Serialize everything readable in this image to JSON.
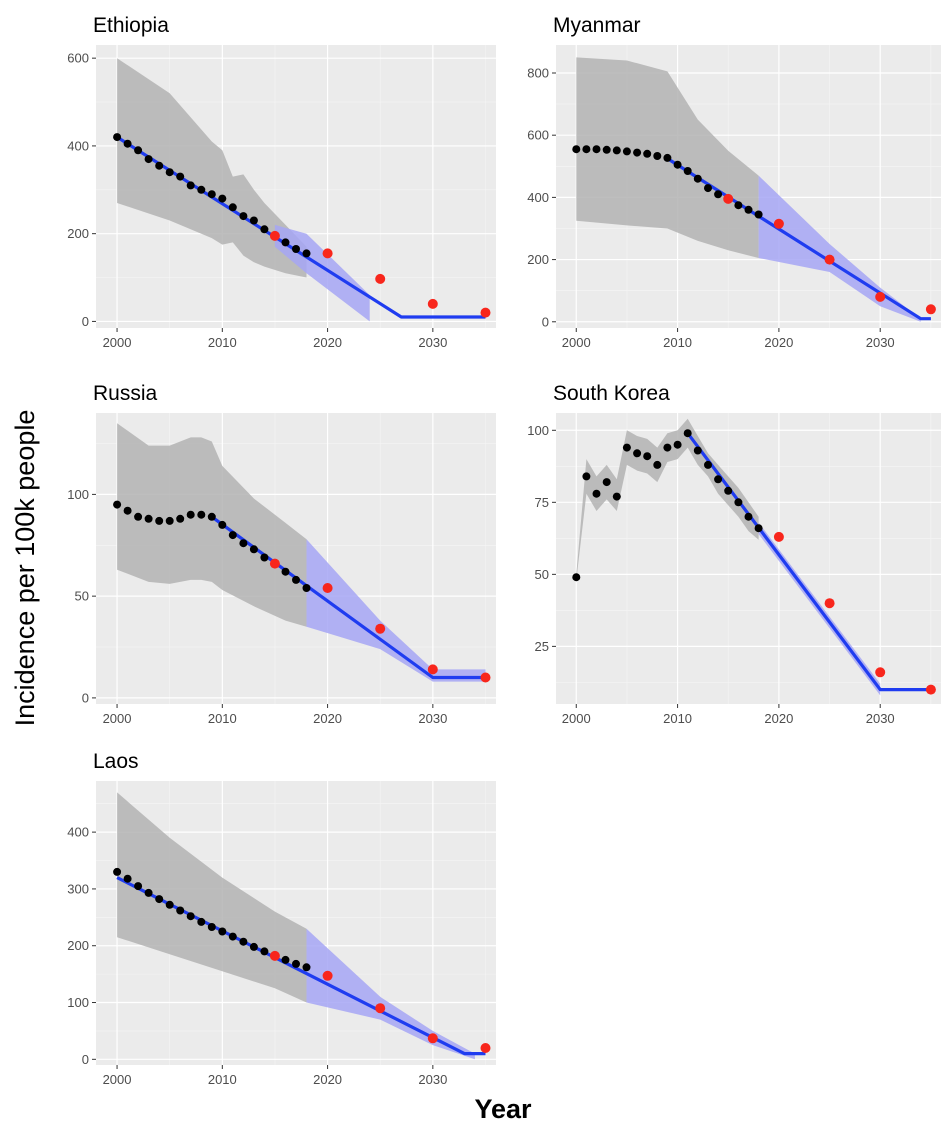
{
  "figure": {
    "xlabel": "Year",
    "ylabel": "Incidence per 100k people"
  },
  "colors": {
    "panel_background": "#ebebeb",
    "observed_points": "#000000",
    "target_points": "#f8261c",
    "trend_line": "#1f3cf0",
    "projection_band": "#a6a6f5",
    "uncertainty_band": "#b3b3b3"
  },
  "chart_data": [
    {
      "type": "scatter",
      "title": "Ethiopia",
      "xlim": [
        1998,
        2036
      ],
      "ylim": [
        -15,
        630
      ],
      "xticks": [
        2000,
        2010,
        2020,
        2030
      ],
      "yticks": [
        0,
        200,
        400,
        600
      ],
      "observed": {
        "x": [
          2000,
          2001,
          2002,
          2003,
          2004,
          2005,
          2006,
          2007,
          2008,
          2009,
          2010,
          2011,
          2012,
          2013,
          2014,
          2015,
          2016,
          2017,
          2018
        ],
        "y": [
          420,
          405,
          390,
          370,
          355,
          340,
          330,
          310,
          300,
          290,
          280,
          260,
          240,
          230,
          210,
          195,
          180,
          165,
          155
        ]
      },
      "targets": {
        "x": [
          2015,
          2020,
          2025,
          2030,
          2035
        ],
        "y": [
          195,
          155,
          97,
          40,
          20
        ]
      },
      "trend": {
        "x": [
          2000,
          2027,
          2035
        ],
        "y": [
          420,
          10,
          10
        ]
      },
      "band": {
        "x": [
          2000,
          2005,
          2009,
          2010,
          2011,
          2012,
          2013,
          2014,
          2016,
          2018
        ],
        "upper": [
          600,
          520,
          410,
          390,
          330,
          335,
          300,
          270,
          220,
          170
        ],
        "lower": [
          270,
          230,
          190,
          175,
          180,
          150,
          135,
          125,
          110,
          100
        ]
      },
      "projection": {
        "x": [
          2015,
          2018,
          2024
        ],
        "upper": [
          220,
          200,
          60
        ],
        "lower": [
          170,
          110,
          0
        ]
      }
    },
    {
      "type": "scatter",
      "title": "Myanmar",
      "xlim": [
        1998,
        2036
      ],
      "ylim": [
        -20,
        890
      ],
      "xticks": [
        2000,
        2010,
        2020,
        2030
      ],
      "yticks": [
        0,
        200,
        400,
        600,
        800
      ],
      "observed": {
        "x": [
          2000,
          2001,
          2002,
          2003,
          2004,
          2005,
          2006,
          2007,
          2008,
          2009,
          2010,
          2011,
          2012,
          2013,
          2014,
          2015,
          2016,
          2017,
          2018
        ],
        "y": [
          555,
          555,
          555,
          553,
          551,
          548,
          544,
          540,
          533,
          527,
          505,
          485,
          460,
          430,
          410,
          395,
          375,
          360,
          345
        ]
      },
      "targets": {
        "x": [
          2015,
          2020,
          2025,
          2030,
          2035
        ],
        "y": [
          395,
          315,
          200,
          80,
          40
        ]
      },
      "trend": {
        "x": [
          2009,
          2034,
          2035
        ],
        "y": [
          525,
          10,
          10
        ]
      },
      "band": {
        "x": [
          2000,
          2005,
          2009,
          2012,
          2015,
          2018
        ],
        "upper": [
          850,
          840,
          805,
          650,
          550,
          470
        ],
        "lower": [
          325,
          310,
          300,
          260,
          230,
          205
        ]
      },
      "projection": {
        "x": [
          2018,
          2025,
          2030,
          2034
        ],
        "upper": [
          470,
          250,
          110,
          10
        ],
        "lower": [
          205,
          160,
          50,
          0
        ]
      }
    },
    {
      "type": "scatter",
      "title": "Russia",
      "xlim": [
        1998,
        2036
      ],
      "ylim": [
        -3,
        140
      ],
      "xticks": [
        2000,
        2010,
        2020,
        2030
      ],
      "yticks": [
        0,
        50,
        100
      ],
      "observed": {
        "x": [
          2000,
          2001,
          2002,
          2003,
          2004,
          2005,
          2006,
          2007,
          2008,
          2009,
          2010,
          2011,
          2012,
          2013,
          2014,
          2015,
          2016,
          2017,
          2018
        ],
        "y": [
          95,
          92,
          89,
          88,
          87,
          87,
          88,
          90,
          90,
          89,
          85,
          80,
          76,
          73,
          69,
          66,
          62,
          58,
          54
        ]
      },
      "targets": {
        "x": [
          2015,
          2020,
          2025,
          2030,
          2035
        ],
        "y": [
          66,
          54,
          34,
          14,
          10
        ]
      },
      "trend": {
        "x": [
          2009,
          2030,
          2035
        ],
        "y": [
          89,
          10,
          10
        ]
      },
      "band": {
        "x": [
          2000,
          2003,
          2005,
          2007,
          2008,
          2009,
          2010,
          2013,
          2016,
          2018
        ],
        "upper": [
          135,
          124,
          124,
          128,
          128,
          126,
          114,
          98,
          86,
          78
        ],
        "lower": [
          63,
          57,
          56,
          58,
          58,
          57,
          53,
          45,
          38,
          35
        ]
      },
      "projection": {
        "x": [
          2018,
          2025,
          2030,
          2035
        ],
        "upper": [
          78,
          38,
          14,
          14
        ],
        "lower": [
          35,
          24,
          8,
          8
        ]
      }
    },
    {
      "type": "scatter",
      "title": "South Korea",
      "xlim": [
        1998,
        2036
      ],
      "ylim": [
        5,
        106
      ],
      "xticks": [
        2000,
        2010,
        2020,
        2030
      ],
      "yticks": [
        25,
        50,
        75,
        100
      ],
      "observed": {
        "x": [
          2000,
          2001,
          2002,
          2003,
          2004,
          2005,
          2006,
          2007,
          2008,
          2009,
          2010,
          2011,
          2012,
          2013,
          2014,
          2015,
          2016,
          2017,
          2018
        ],
        "y": [
          49,
          84,
          78,
          82,
          77,
          94,
          92,
          91,
          88,
          94,
          95,
          99,
          93,
          88,
          83,
          79,
          75,
          70,
          66
        ]
      },
      "targets": {
        "x": [
          2020,
          2025,
          2030,
          2035
        ],
        "y": [
          63,
          40,
          16,
          10
        ]
      },
      "trend": {
        "x": [
          2011,
          2030,
          2035
        ],
        "y": [
          99,
          10,
          10
        ]
      },
      "band": {
        "x": [
          2000,
          2001,
          2002,
          2003,
          2004,
          2005,
          2006,
          2007,
          2008,
          2009,
          2010,
          2011,
          2012,
          2013,
          2014,
          2015,
          2016,
          2017,
          2018
        ],
        "upper": [
          50,
          90,
          84,
          88,
          83,
          100,
          98,
          97,
          94,
          99,
          100,
          104,
          98,
          92,
          88,
          84,
          80,
          75,
          70
        ],
        "lower": [
          48,
          78,
          72,
          76,
          72,
          88,
          86,
          85,
          82,
          89,
          90,
          94,
          88,
          84,
          78,
          74,
          70,
          65,
          62
        ]
      },
      "projection": {
        "x": [
          2018,
          2030
        ],
        "upper": [
          68,
          12
        ],
        "lower": [
          64,
          8
        ]
      }
    },
    {
      "type": "scatter",
      "title": "Laos",
      "xlim": [
        1998,
        2036
      ],
      "ylim": [
        -10,
        490
      ],
      "xticks": [
        2000,
        2010,
        2020,
        2030
      ],
      "yticks": [
        0,
        100,
        200,
        300,
        400
      ],
      "observed": {
        "x": [
          2000,
          2001,
          2002,
          2003,
          2004,
          2005,
          2006,
          2007,
          2008,
          2009,
          2010,
          2011,
          2012,
          2013,
          2014,
          2015,
          2016,
          2017,
          2018
        ],
        "y": [
          330,
          318,
          305,
          293,
          282,
          272,
          262,
          252,
          242,
          233,
          225,
          216,
          207,
          198,
          190,
          182,
          175,
          168,
          162
        ]
      },
      "targets": {
        "x": [
          2015,
          2020,
          2025,
          2030,
          2035
        ],
        "y": [
          182,
          147,
          90,
          37,
          20
        ]
      },
      "trend": {
        "x": [
          2000,
          2033,
          2035
        ],
        "y": [
          320,
          10,
          10
        ]
      },
      "band": {
        "x": [
          2000,
          2005,
          2010,
          2015,
          2018
        ],
        "upper": [
          470,
          390,
          320,
          260,
          230
        ],
        "lower": [
          215,
          185,
          155,
          125,
          100
        ]
      },
      "projection": {
        "x": [
          2018,
          2025,
          2030,
          2034
        ],
        "upper": [
          230,
          110,
          50,
          10
        ],
        "lower": [
          100,
          70,
          25,
          0
        ]
      }
    }
  ]
}
